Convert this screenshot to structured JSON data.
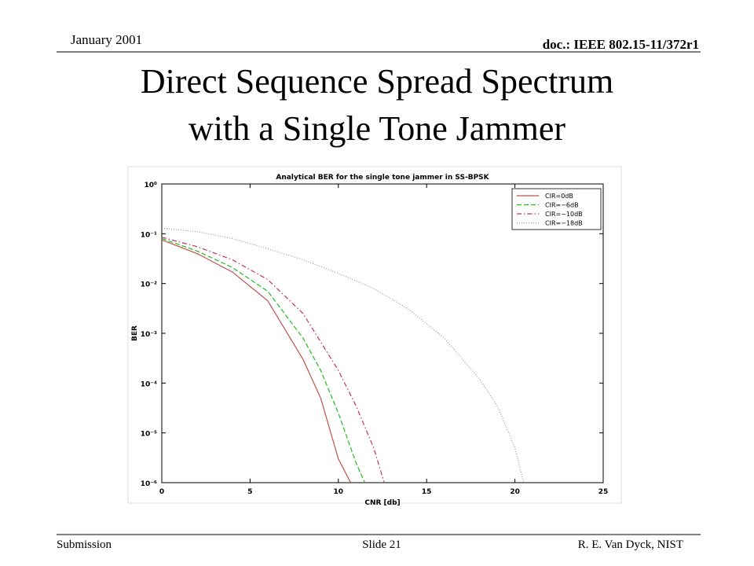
{
  "slide": {
    "date": "January 2001",
    "doc": "doc.: IEEE 802.15-11/372r1",
    "title_lines": [
      "Direct Sequence Spread Spectrum",
      "with a Single Tone Jammer"
    ],
    "footer_left": "Submission",
    "footer_center": "Slide 21",
    "footer_right": "R. E. Van Dyck, NIST"
  },
  "chart_data": {
    "type": "line",
    "title": "Analytical BER for the single tone jammer in SS-BPSK",
    "xlabel": "CNR [db]",
    "ylabel": "BER",
    "log_y": true,
    "legend": "upper-right",
    "xlim": [
      0,
      25
    ],
    "xticks": [
      0,
      5,
      10,
      15,
      20,
      25
    ],
    "ylim": [
      1e-06,
      1
    ],
    "yticks": [
      {
        "value": 1,
        "label": "10⁰"
      },
      {
        "value": 0.1,
        "label": "10⁻¹"
      },
      {
        "value": 0.01,
        "label": "10⁻²"
      },
      {
        "value": 0.001,
        "label": "10⁻³"
      },
      {
        "value": 0.0001,
        "label": "10⁻⁴"
      },
      {
        "value": 1e-05,
        "label": "10⁻⁵"
      },
      {
        "value": 1e-06,
        "label": "10⁻⁶"
      }
    ],
    "series": [
      {
        "name": "CIR=0dB",
        "color": "#c0504d",
        "style": "solid",
        "x": [
          0,
          2,
          4,
          6,
          8,
          9,
          10,
          10.7
        ],
        "values": [
          0.075,
          0.04,
          0.017,
          0.0045,
          0.0003,
          5e-05,
          3e-06,
          1e-06
        ]
      },
      {
        "name": "CIR=−6dB",
        "color": "#22bb22",
        "style": "dashed",
        "x": [
          0,
          2,
          4,
          6,
          8,
          9,
          10,
          11,
          11.5
        ],
        "values": [
          0.08,
          0.045,
          0.021,
          0.007,
          0.0008,
          0.00018,
          2.5e-05,
          2.5e-06,
          1e-06
        ]
      },
      {
        "name": "CIR=−10dB",
        "color": "#c0306a",
        "style": "dashdot",
        "x": [
          0,
          2,
          4,
          6,
          8,
          10,
          11,
          12,
          12.6
        ],
        "values": [
          0.085,
          0.055,
          0.03,
          0.012,
          0.0025,
          0.00018,
          3.5e-05,
          5e-06,
          1e-06
        ]
      },
      {
        "name": "CIR=−18dB",
        "color": "#999999",
        "style": "dotted",
        "x": [
          0,
          2,
          4,
          6,
          8,
          10,
          12,
          14,
          16,
          18,
          19,
          20,
          20.5
        ],
        "values": [
          0.13,
          0.11,
          0.08,
          0.05,
          0.03,
          0.016,
          0.008,
          0.003,
          0.0008,
          0.00012,
          3.5e-05,
          5e-06,
          1e-06
        ]
      }
    ]
  }
}
